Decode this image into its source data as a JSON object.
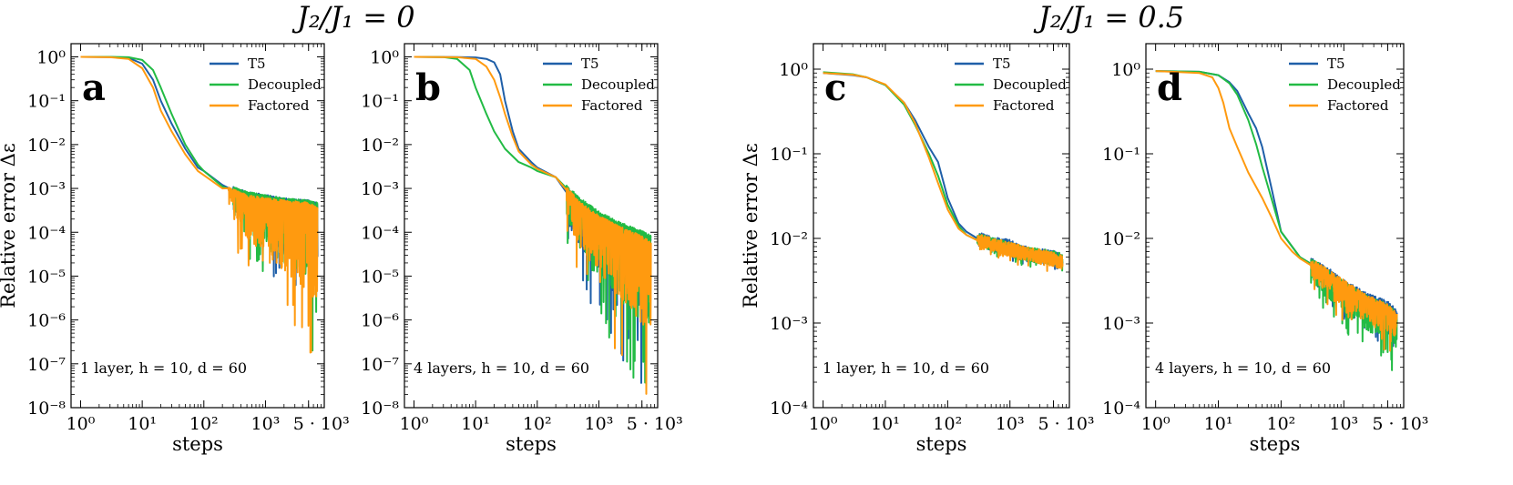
{
  "figure": {
    "group_titles": [
      "J₂/J₁ = 0",
      "J₂/J₁ = 0.5"
    ]
  },
  "colors": {
    "T5": "#1f5fa8",
    "Decoupled": "#22bb44",
    "Factored": "#ff9a0f"
  },
  "chart_data": [
    {
      "type": "line",
      "panel_letter": "a",
      "group": "J₂/J₁ = 0",
      "xlabel": "steps",
      "ylabel": "Relative error Δε",
      "xscale": "log",
      "yscale": "log",
      "xlim": [
        0.7,
        9000
      ],
      "ylim": [
        1e-08,
        2
      ],
      "xticks": [
        "10⁰",
        "10¹",
        "10²",
        "10³",
        "5 · 10³"
      ],
      "yticks": [
        "10⁰",
        "10⁻¹",
        "10⁻²",
        "10⁻³",
        "10⁻⁴",
        "10⁻⁵",
        "10⁻⁶",
        "10⁻⁷",
        "10⁻⁸"
      ],
      "annotation": "1 layer, h = 10, d = 60",
      "legend": "top-right",
      "series": [
        {
          "name": "T5",
          "x": [
            1,
            3,
            6,
            10,
            15,
            20,
            30,
            50,
            80,
            100,
            200,
            300,
            500,
            1000,
            2000,
            5000,
            7000
          ],
          "y": [
            1,
            0.99,
            0.95,
            0.7,
            0.3,
            0.1,
            0.03,
            0.008,
            0.003,
            0.0025,
            0.0012,
            0.0009,
            0.0007,
            0.0006,
            0.0005,
            0.00045,
            0.0004
          ],
          "noise_from": 300,
          "noise_floor": 3e-07
        },
        {
          "name": "Decoupled",
          "x": [
            1,
            3,
            6,
            10,
            15,
            20,
            30,
            50,
            80,
            100,
            200,
            300,
            500,
            1000,
            2000,
            5000,
            7000
          ],
          "y": [
            1,
            1,
            0.98,
            0.85,
            0.5,
            0.2,
            0.05,
            0.01,
            0.0035,
            0.0025,
            0.0011,
            0.0009,
            0.0007,
            0.0006,
            0.0005,
            0.00045,
            0.0004
          ],
          "noise_from": 300,
          "noise_floor": 1e-07
        },
        {
          "name": "Factored",
          "x": [
            1,
            3,
            6,
            10,
            15,
            20,
            30,
            50,
            80,
            100,
            200,
            300,
            500,
            1000,
            2000,
            5000,
            7000
          ],
          "y": [
            1,
            0.98,
            0.9,
            0.55,
            0.2,
            0.06,
            0.02,
            0.006,
            0.0025,
            0.002,
            0.001,
            0.0008,
            0.0006,
            0.0005,
            0.00045,
            0.0004,
            0.0003
          ],
          "noise_from": 250,
          "noise_floor": 5e-08
        }
      ]
    },
    {
      "type": "line",
      "panel_letter": "b",
      "group": "J₂/J₁ = 0",
      "xlabel": "steps",
      "ylabel": "",
      "xscale": "log",
      "yscale": "log",
      "xlim": [
        0.7,
        9000
      ],
      "ylim": [
        1e-08,
        2
      ],
      "xticks": [
        "10⁰",
        "10¹",
        "10²",
        "10³",
        "5 · 10³"
      ],
      "yticks": [
        "10⁰",
        "10⁻¹",
        "10⁻²",
        "10⁻³",
        "10⁻⁴",
        "10⁻⁵",
        "10⁻⁶",
        "10⁻⁷",
        "10⁻⁸"
      ],
      "annotation": "4 layers, h = 10, d = 60",
      "legend": "top-right",
      "series": [
        {
          "name": "T5",
          "x": [
            1,
            5,
            10,
            15,
            20,
            25,
            30,
            40,
            50,
            80,
            100,
            200,
            300,
            500,
            1000,
            2000,
            5000,
            7000
          ],
          "y": [
            1,
            0.99,
            0.97,
            0.9,
            0.75,
            0.4,
            0.1,
            0.02,
            0.008,
            0.004,
            0.003,
            0.0018,
            0.0008,
            0.0004,
            0.0002,
            0.00012,
            8e-05,
            6e-05
          ],
          "noise_from": 300,
          "noise_floor": 1e-08
        },
        {
          "name": "Decoupled",
          "x": [
            1,
            3,
            5,
            8,
            10,
            15,
            20,
            30,
            50,
            80,
            100,
            200,
            300,
            500,
            1000,
            2000,
            5000,
            7000
          ],
          "y": [
            1,
            0.99,
            0.9,
            0.5,
            0.2,
            0.05,
            0.02,
            0.008,
            0.004,
            0.003,
            0.0025,
            0.0018,
            0.001,
            0.0005,
            0.00025,
            0.00015,
            9e-05,
            7e-05
          ],
          "noise_from": 300,
          "noise_floor": 1e-08
        },
        {
          "name": "Factored",
          "x": [
            1,
            5,
            10,
            15,
            20,
            25,
            30,
            40,
            50,
            80,
            100,
            200,
            300,
            500,
            1000,
            2000,
            5000,
            7000
          ],
          "y": [
            1,
            0.98,
            0.9,
            0.6,
            0.3,
            0.12,
            0.05,
            0.015,
            0.007,
            0.0035,
            0.0028,
            0.0018,
            0.0009,
            0.0004,
            0.0002,
            0.00012,
            7e-05,
            5e-05
          ],
          "noise_from": 300,
          "noise_floor": 1e-08
        }
      ]
    },
    {
      "type": "line",
      "panel_letter": "c",
      "group": "J₂/J₁ = 0.5",
      "xlabel": "steps",
      "ylabel": "Relative error Δε",
      "xscale": "log",
      "yscale": "log",
      "xlim": [
        0.7,
        9000
      ],
      "ylim": [
        0.0001,
        2
      ],
      "xticks": [
        "10⁰",
        "10¹",
        "10²",
        "10³",
        "5 · 10³"
      ],
      "yticks": [
        "10⁰",
        "10⁻¹",
        "10⁻²",
        "10⁻³",
        "10⁻⁴"
      ],
      "annotation": "1 layer, h = 10, d = 60",
      "legend": "top-right",
      "series": [
        {
          "name": "T5",
          "x": [
            1,
            3,
            5,
            10,
            20,
            30,
            50,
            70,
            100,
            150,
            200,
            300,
            500,
            1000,
            2000,
            5000,
            7000
          ],
          "y": [
            0.9,
            0.85,
            0.8,
            0.65,
            0.4,
            0.25,
            0.12,
            0.08,
            0.03,
            0.015,
            0.012,
            0.01,
            0.009,
            0.008,
            0.0065,
            0.006,
            0.0055
          ],
          "noise_from": 300,
          "noise_floor": 0.004
        },
        {
          "name": "Decoupled",
          "x": [
            1,
            3,
            5,
            10,
            20,
            30,
            50,
            70,
            100,
            150,
            200,
            300,
            500,
            1000,
            2000,
            5000,
            7000
          ],
          "y": [
            0.92,
            0.87,
            0.8,
            0.65,
            0.38,
            0.22,
            0.1,
            0.055,
            0.025,
            0.014,
            0.011,
            0.0095,
            0.0085,
            0.0075,
            0.0065,
            0.006,
            0.0055
          ],
          "noise_from": 300,
          "noise_floor": 0.004
        },
        {
          "name": "Factored",
          "x": [
            1,
            3,
            5,
            10,
            20,
            30,
            50,
            70,
            100,
            150,
            200,
            300,
            500,
            1000,
            2000,
            5000,
            7000
          ],
          "y": [
            0.9,
            0.86,
            0.8,
            0.66,
            0.4,
            0.23,
            0.09,
            0.045,
            0.022,
            0.013,
            0.011,
            0.0095,
            0.0085,
            0.0075,
            0.0065,
            0.0058,
            0.0052
          ],
          "noise_from": 300,
          "noise_floor": 0.0037
        }
      ]
    },
    {
      "type": "line",
      "panel_letter": "d",
      "group": "J₂/J₁ = 0.5",
      "xlabel": "steps",
      "ylabel": "",
      "xscale": "log",
      "yscale": "log",
      "xlim": [
        0.7,
        9000
      ],
      "ylim": [
        0.0001,
        2
      ],
      "xticks": [
        "10⁰",
        "10¹",
        "10²",
        "10³",
        "5 · 10³"
      ],
      "yticks": [
        "10⁰",
        "10⁻¹",
        "10⁻²",
        "10⁻³",
        "10⁻⁴"
      ],
      "annotation": "4 layers, h = 10, d = 60",
      "legend": "top-right",
      "series": [
        {
          "name": "T5",
          "x": [
            1,
            5,
            10,
            15,
            20,
            30,
            40,
            50,
            70,
            100,
            150,
            200,
            300,
            500,
            1000,
            2000,
            5000,
            7000
          ],
          "y": [
            0.95,
            0.93,
            0.85,
            0.7,
            0.55,
            0.3,
            0.2,
            0.12,
            0.04,
            0.012,
            0.008,
            0.006,
            0.005,
            0.004,
            0.0028,
            0.002,
            0.0015,
            0.0012
          ],
          "noise_from": 300,
          "noise_floor": 0.0005
        },
        {
          "name": "Decoupled",
          "x": [
            1,
            5,
            10,
            15,
            20,
            30,
            40,
            50,
            70,
            100,
            150,
            200,
            300,
            500,
            1000,
            2000,
            5000,
            7000
          ],
          "y": [
            0.95,
            0.93,
            0.85,
            0.68,
            0.5,
            0.25,
            0.13,
            0.07,
            0.03,
            0.012,
            0.008,
            0.006,
            0.005,
            0.0038,
            0.0026,
            0.0019,
            0.0014,
            0.0011
          ],
          "noise_from": 300,
          "noise_floor": 0.00025
        },
        {
          "name": "Factored",
          "x": [
            1,
            5,
            8,
            10,
            12,
            15,
            20,
            30,
            50,
            70,
            100,
            150,
            200,
            300,
            500,
            1000,
            2000,
            5000,
            7000
          ],
          "y": [
            0.95,
            0.9,
            0.8,
            0.6,
            0.4,
            0.2,
            0.12,
            0.06,
            0.03,
            0.018,
            0.01,
            0.007,
            0.0058,
            0.0048,
            0.0038,
            0.0027,
            0.0019,
            0.0014,
            0.0011
          ],
          "noise_from": 300,
          "noise_floor": 0.0004
        }
      ]
    }
  ]
}
